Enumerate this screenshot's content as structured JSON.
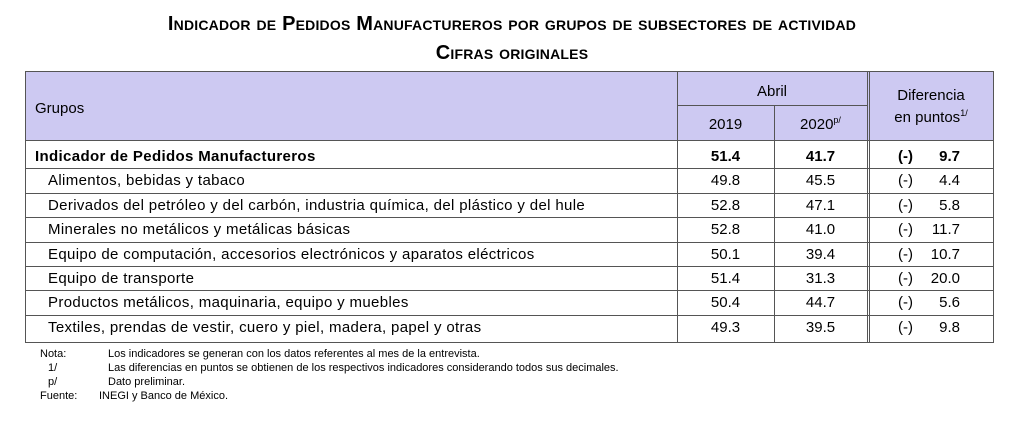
{
  "title": {
    "line1": "Indicador de Pedidos Manufactureros por grupos de subsectores de actividad",
    "line2": "Cifras originales"
  },
  "header": {
    "grupos": "Grupos",
    "abril": "Abril",
    "year1": "2019",
    "year2": "2020",
    "year2_sup": "p/",
    "diff_line1": "Diferencia",
    "diff_line2": "en puntos",
    "diff_sup": "1/"
  },
  "rows": [
    {
      "label": "Indicador de Pedidos Manufactureros",
      "v2019": "51.4",
      "v2020": "41.7",
      "sign": "(-)",
      "diff": "9.7",
      "bold": true
    },
    {
      "label": "Alimentos, bebidas y tabaco",
      "v2019": "49.8",
      "v2020": "45.5",
      "sign": "(-)",
      "diff": "4.4"
    },
    {
      "label": "Derivados del petróleo y del carbón, industria química, del plástico y del hule",
      "v2019": "52.8",
      "v2020": "47.1",
      "sign": "(-)",
      "diff": "5.8"
    },
    {
      "label": "Minerales no metálicos y metálicas básicas",
      "v2019": "52.8",
      "v2020": "41.0",
      "sign": "(-)",
      "diff": "11.7"
    },
    {
      "label": "Equipo de computación, accesorios electrónicos y aparatos eléctricos",
      "v2019": "50.1",
      "v2020": "39.4",
      "sign": "(-)",
      "diff": "10.7"
    },
    {
      "label": "Equipo de transporte",
      "v2019": "51.4",
      "v2020": "31.3",
      "sign": "(-)",
      "diff": "20.0"
    },
    {
      "label": "Productos metálicos, maquinaria, equipo y muebles",
      "v2019": "50.4",
      "v2020": "44.7",
      "sign": "(-)",
      "diff": "5.6"
    },
    {
      "label": "Textiles, prendas de vestir, cuero y piel, madera, papel y otras",
      "v2019": "49.3",
      "v2020": "39.5",
      "sign": "(-)",
      "diff": "9.8"
    }
  ],
  "notes": {
    "nota_key": "Nota:",
    "nota_text": "Los indicadores se generan con los datos referentes al mes de la entrevista.",
    "n1_key": "1/",
    "n1_text": "Las diferencias en puntos se obtienen de los respectivos indicadores considerando todos sus decimales.",
    "np_key": "p/",
    "np_text": "Dato preliminar.",
    "fuente_key": "Fuente:",
    "fuente_text": "INEGI y Banco de México."
  },
  "colors": {
    "header_bg": "#cdc9f2",
    "border": "#555555"
  }
}
